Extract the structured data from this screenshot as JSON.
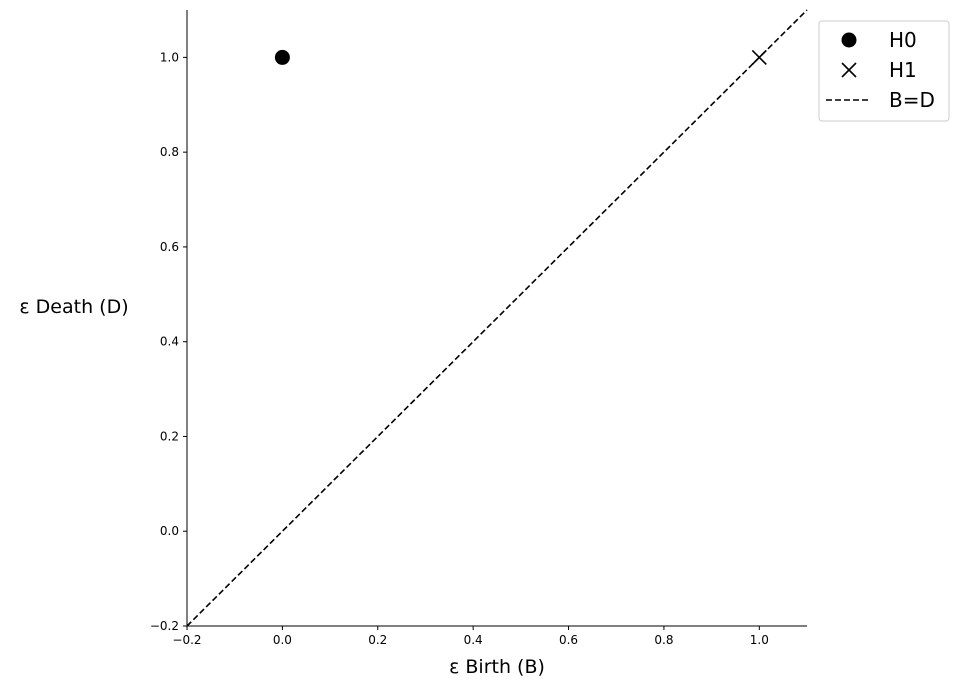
{
  "chart_data": {
    "type": "scatter",
    "xlabel": "ε Birth (B)",
    "ylabel": "ε Death (D)",
    "xlim": [
      -0.2,
      1.1
    ],
    "ylim": [
      -0.2,
      1.1
    ],
    "x_ticks": [
      "−0.2",
      "0.0",
      "0.2",
      "0.4",
      "0.6",
      "0.8",
      "1.0"
    ],
    "y_ticks": [
      "−0.2",
      "0.0",
      "0.2",
      "0.4",
      "0.6",
      "0.8",
      "1.0"
    ],
    "x_tick_values": [
      -0.2,
      0.0,
      0.2,
      0.4,
      0.6,
      0.8,
      1.0
    ],
    "y_tick_values": [
      -0.2,
      0.0,
      0.2,
      0.4,
      0.6,
      0.8,
      1.0
    ],
    "grid": false,
    "legend_position": "outside top-right",
    "series": [
      {
        "name": "H0",
        "marker": "circle",
        "color": "#000000",
        "points": [
          {
            "x": 0.0,
            "y": 1.0
          }
        ]
      },
      {
        "name": "H1",
        "marker": "x",
        "color": "#000000",
        "points": [
          {
            "x": 1.0,
            "y": 1.0
          }
        ]
      }
    ],
    "reference_line": {
      "name": "B=D",
      "style": "dashed",
      "color": "#000000",
      "from": [
        -0.2,
        -0.2
      ],
      "to": [
        1.1,
        1.1
      ]
    }
  }
}
